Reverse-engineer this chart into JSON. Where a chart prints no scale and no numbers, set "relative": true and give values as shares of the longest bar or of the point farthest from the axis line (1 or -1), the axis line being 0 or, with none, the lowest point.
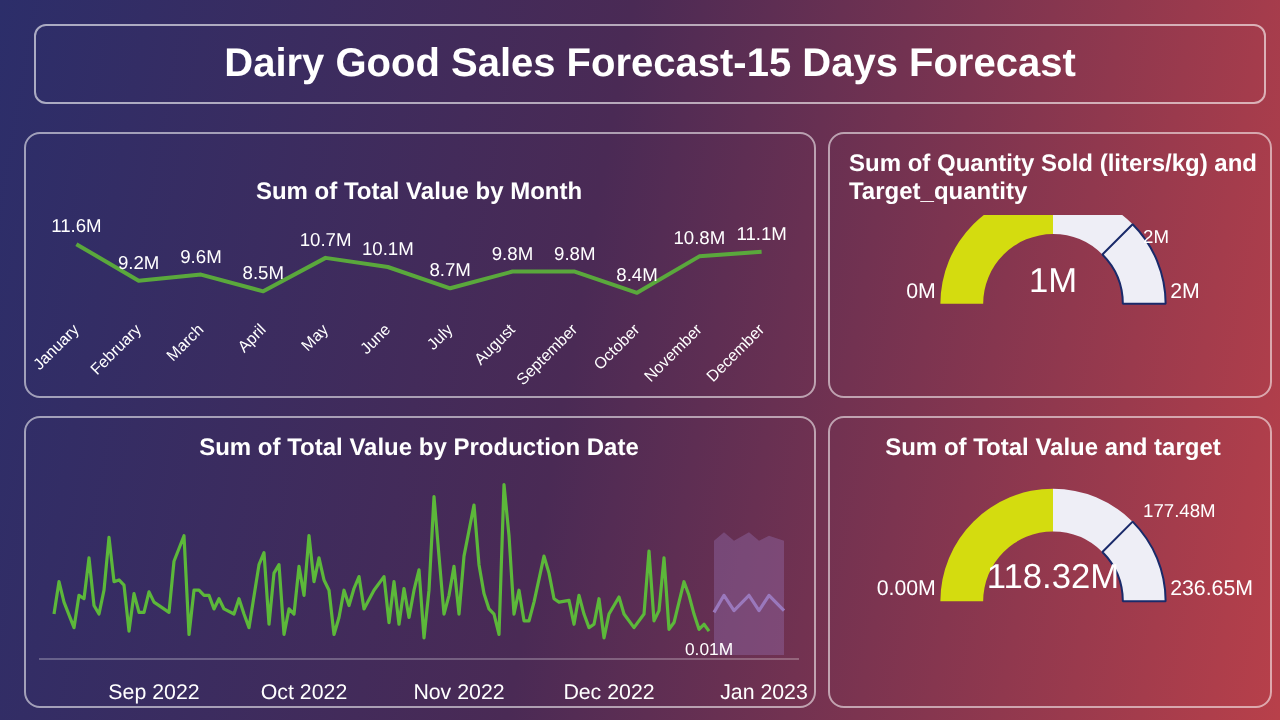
{
  "chart_data": [
    {
      "type": "other",
      "title": "Dairy Good Sales Forecast-15 Days Forecast"
    },
    {
      "type": "line",
      "title": "Sum of Total Value by Month",
      "tick_labels": "x",
      "color": "#5aa83c",
      "categories": [
        "January",
        "February",
        "March",
        "April",
        "May",
        "June",
        "July",
        "August",
        "September",
        "October",
        "November",
        "December"
      ],
      "values": [
        11.6,
        9.2,
        9.6,
        8.5,
        10.7,
        10.1,
        8.7,
        9.8,
        9.8,
        8.4,
        10.8,
        11.1
      ],
      "value_labels": [
        "11.6M",
        "9.2M",
        "9.6M",
        "8.5M",
        "10.7M",
        "10.1M",
        "8.7M",
        "9.8M",
        "9.8M",
        "8.4M",
        "10.8M",
        "11.1M"
      ]
    },
    {
      "type": "donut",
      "title": "Sum of Quantity Sold (liters/kg) and Target_quantity",
      "categories": [
        null,
        null,
        null
      ],
      "values": [
        50,
        25,
        25
      ],
      "colors": [
        "#d4dc0f",
        "#eeeef6",
        "#eeeef6"
      ],
      "annotations": [
        "1M",
        "0M",
        "2M",
        "2M"
      ]
    },
    {
      "type": "line",
      "title": "Sum of Total Value by Production Date",
      "relative": true,
      "xlim": [
        "2022-08-09",
        "2023-01-08"
      ],
      "xticks": [
        {
          "value": "2022-09-01",
          "label": "Sep 2022"
        },
        {
          "value": "2022-10-01",
          "label": "Oct 2022"
        },
        {
          "value": "2022-11-01",
          "label": "Nov 2022"
        },
        {
          "value": "2022-12-01",
          "label": "Dec 2022"
        },
        {
          "value": "2023-01-01",
          "label": "Jan 2023"
        }
      ],
      "series": [
        {
          "color": "#5cb83a",
          "x": [
            "2022-08-12",
            "2022-08-13",
            "2022-08-14",
            "2022-08-16",
            "2022-08-17",
            "2022-08-18",
            "2022-08-19",
            "2022-08-20",
            "2022-08-21",
            "2022-08-22",
            "2022-08-23",
            "2022-08-24",
            "2022-08-25",
            "2022-08-26",
            "2022-08-27",
            "2022-08-28",
            "2022-08-29",
            "2022-08-30",
            "2022-08-31",
            "2022-09-01",
            "2022-09-04",
            "2022-09-05",
            "2022-09-07",
            "2022-09-08",
            "2022-09-09",
            "2022-09-10",
            "2022-09-11",
            "2022-09-12",
            "2022-09-13",
            "2022-09-14",
            "2022-09-15",
            "2022-09-17",
            "2022-09-18",
            "2022-09-19",
            "2022-09-20",
            "2022-09-22",
            "2022-09-23",
            "2022-09-24",
            "2022-09-25",
            "2022-09-26",
            "2022-09-27",
            "2022-09-28",
            "2022-09-29",
            "2022-09-30",
            "2022-10-01",
            "2022-10-02",
            "2022-10-03",
            "2022-10-04",
            "2022-10-05",
            "2022-10-06",
            "2022-10-07",
            "2022-10-08",
            "2022-10-09",
            "2022-10-10",
            "2022-10-11",
            "2022-10-12",
            "2022-10-13",
            "2022-10-15",
            "2022-10-17",
            "2022-10-18",
            "2022-10-19",
            "2022-10-20",
            "2022-10-21",
            "2022-10-22",
            "2022-10-23",
            "2022-10-24",
            "2022-10-25",
            "2022-10-26",
            "2022-10-27",
            "2022-10-28",
            "2022-10-29",
            "2022-10-30",
            "2022-10-31",
            "2022-11-01",
            "2022-11-02",
            "2022-11-04",
            "2022-11-05",
            "2022-11-06",
            "2022-11-07",
            "2022-11-08",
            "2022-11-09",
            "2022-11-10",
            "2022-11-11",
            "2022-11-12",
            "2022-11-13",
            "2022-11-14",
            "2022-11-15",
            "2022-11-16",
            "2022-11-18",
            "2022-11-19",
            "2022-11-20",
            "2022-11-21",
            "2022-11-23",
            "2022-11-24",
            "2022-11-25",
            "2022-11-26",
            "2022-11-27",
            "2022-11-28",
            "2022-11-29",
            "2022-11-30",
            "2022-12-01",
            "2022-12-03",
            "2022-12-04",
            "2022-12-06",
            "2022-12-08",
            "2022-12-09",
            "2022-12-10",
            "2022-12-11",
            "2022-12-12",
            "2022-12-13",
            "2022-12-14",
            "2022-12-16",
            "2022-12-17",
            "2022-12-18",
            "2022-12-19",
            "2022-12-20",
            "2022-12-21"
          ],
          "values": [
            0.24,
            0.43,
            0.31,
            0.16,
            0.35,
            0.33,
            0.57,
            0.29,
            0.24,
            0.38,
            0.69,
            0.43,
            0.44,
            0.41,
            0.14,
            0.36,
            0.25,
            0.25,
            0.37,
            0.31,
            0.25,
            0.55,
            0.7,
            0.12,
            0.38,
            0.38,
            0.35,
            0.35,
            0.27,
            0.33,
            0.27,
            0.24,
            0.33,
            0.24,
            0.16,
            0.53,
            0.6,
            0.18,
            0.48,
            0.53,
            0.12,
            0.27,
            0.24,
            0.52,
            0.35,
            0.7,
            0.43,
            0.57,
            0.44,
            0.38,
            0.12,
            0.22,
            0.38,
            0.29,
            0.39,
            0.46,
            0.27,
            0.38,
            0.46,
            0.19,
            0.43,
            0.18,
            0.39,
            0.22,
            0.38,
            0.5,
            0.1,
            0.38,
            0.93,
            0.58,
            0.24,
            0.35,
            0.52,
            0.24,
            0.58,
            0.88,
            0.53,
            0.36,
            0.27,
            0.24,
            0.12,
            1,
            0.7,
            0.24,
            0.38,
            0.2,
            0.2,
            0.31,
            0.58,
            0.48,
            0.33,
            0.31,
            0.32,
            0.18,
            0.35,
            0.24,
            0.16,
            0.18,
            0.33,
            0.1,
            0.24,
            0.34,
            0.24,
            0.16,
            0.24,
            0.61,
            0.2,
            0.26,
            0.57,
            0.15,
            0.19,
            0.43,
            0.35,
            0.24,
            0.15,
            0.18,
            0.14
          ]
        },
        {
          "color": "#9a78bc",
          "x": [
            "2022-12-22",
            "2022-12-24",
            "2022-12-26",
            "2022-12-29",
            "2022-12-31",
            "2023-01-02",
            "2023-01-05"
          ],
          "values": [
            0.25,
            0.35,
            0.26,
            0.35,
            0.26,
            0.35,
            0.26
          ],
          "lower": [
            0,
            0,
            0,
            0,
            0,
            0,
            0
          ],
          "upper": [
            0.67,
            0.72,
            0.67,
            0.72,
            0.67,
            0.7,
            0.67
          ]
        }
      ],
      "annotations": [
        {
          "text": "0.01M",
          "x": "2022-12-21",
          "y": 0.14
        }
      ]
    },
    {
      "type": "donut",
      "title": "Sum of Total Value and target",
      "categories": [
        null,
        null,
        null
      ],
      "values": [
        50,
        25,
        25
      ],
      "colors": [
        "#d4dc0f",
        "#eeeef6",
        "#eeeef6"
      ],
      "annotations": [
        "118.32M",
        "0.00M",
        "236.65M",
        "177.48M"
      ]
    }
  ]
}
